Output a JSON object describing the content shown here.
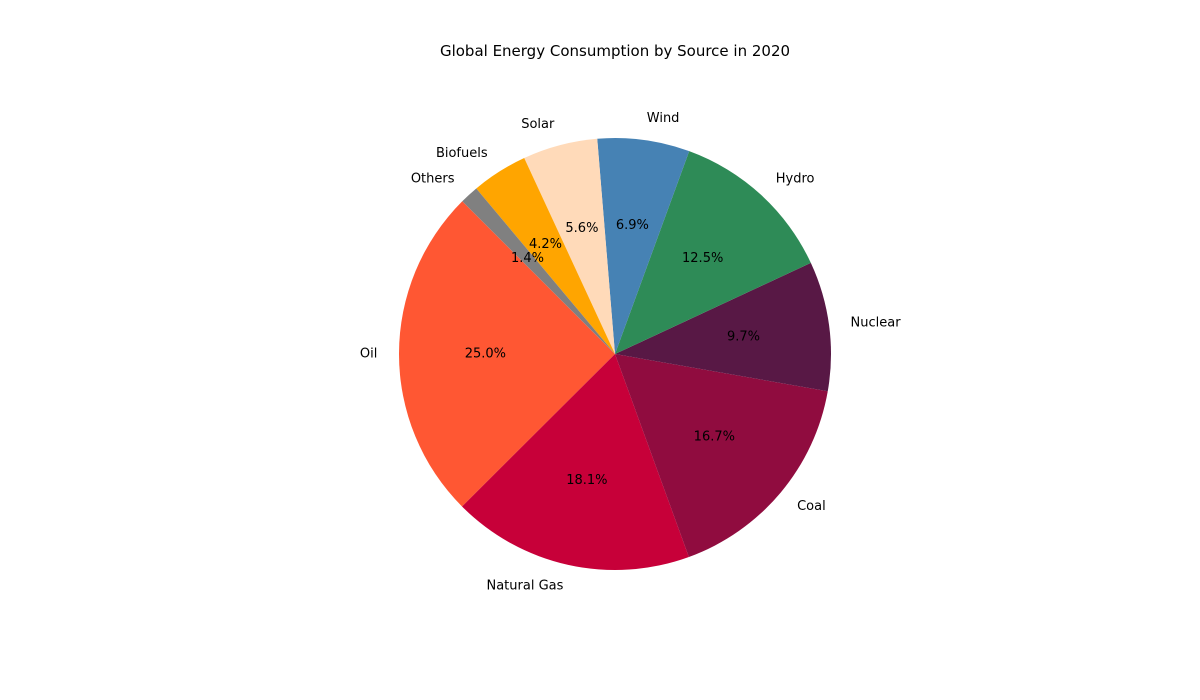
{
  "chart_data": {
    "type": "pie",
    "title": "Global Energy Consumption by Source in 2020",
    "categories": [
      "Oil",
      "Natural Gas",
      "Coal",
      "Nuclear",
      "Hydro",
      "Wind",
      "Solar",
      "Biofuels",
      "Others"
    ],
    "values": [
      25.0,
      18.1,
      16.7,
      9.7,
      12.5,
      6.9,
      5.6,
      4.2,
      1.4
    ],
    "value_labels": [
      "25.0%",
      "18.1%",
      "16.7%",
      "9.7%",
      "12.5%",
      "6.9%",
      "5.6%",
      "4.2%",
      "1.4%"
    ],
    "colors": [
      "#ff5733",
      "#c70039",
      "#900c3f",
      "#581845",
      "#2e8b57",
      "#4682b4",
      "#ffdab9",
      "#ffa500",
      "#808080"
    ],
    "start_angle_deg": 135,
    "direction": "counterclockwise"
  }
}
